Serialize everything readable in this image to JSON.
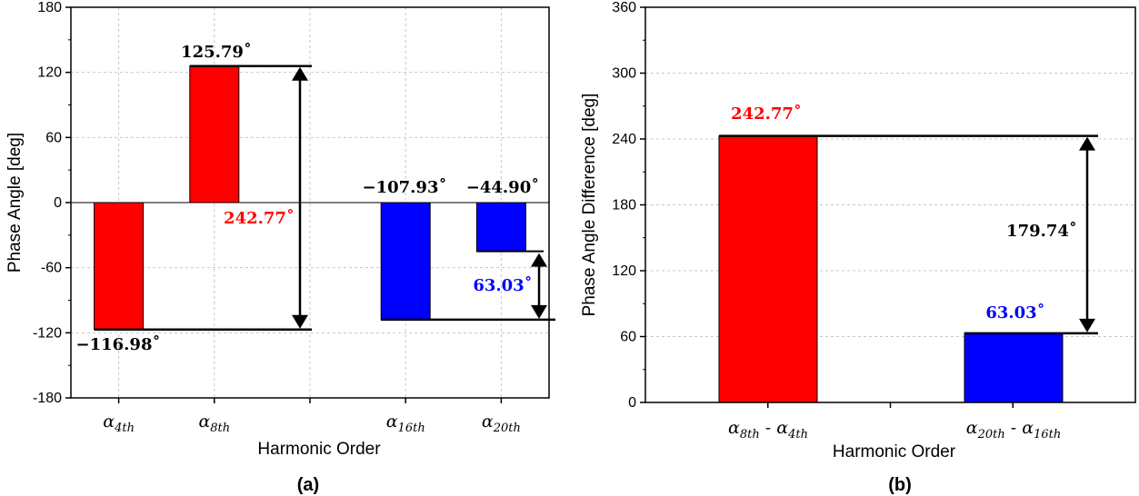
{
  "colors": {
    "red": "#ff0000",
    "blue": "#0000ff",
    "black": "#000000",
    "grid": "#c8c8c8"
  },
  "chart_data": [
    {
      "type": "bar",
      "panel": "(a)",
      "xlabel": "Harmonic Order",
      "ylabel": "Phase Angle [deg]",
      "ylim": [
        -180,
        180
      ],
      "yticks": [
        -180,
        -120,
        -60,
        0,
        60,
        120,
        180
      ],
      "grid": true,
      "categories": [
        {
          "base": "α",
          "sub": "4th"
        },
        {
          "base": "α",
          "sub": "8th"
        },
        {
          "base": "α",
          "sub": "16th"
        },
        {
          "base": "α",
          "sub": "20th"
        }
      ],
      "values": [
        -116.98,
        125.79,
        -107.93,
        -44.9
      ],
      "bar_colors": [
        "red",
        "red",
        "blue",
        "blue"
      ],
      "data_labels": [
        "−116.98˚",
        "125.79˚",
        "−107.93˚",
        "−44.90˚"
      ],
      "annotations": [
        {
          "text": "242.77˚",
          "color": "red",
          "from": -116.98,
          "to": 125.79
        },
        {
          "text": "63.03˚",
          "color": "blue",
          "from": -107.93,
          "to": -44.9
        }
      ]
    },
    {
      "type": "bar",
      "panel": "(b)",
      "xlabel": "Harmonic Order",
      "ylabel": "Phase Angle Difference [deg]",
      "ylim": [
        0,
        360
      ],
      "yticks": [
        0,
        60,
        120,
        180,
        240,
        300,
        360
      ],
      "grid": true,
      "categories": [
        {
          "parts": [
            {
              "base": "α",
              "sub": "8th"
            },
            {
              "base": "α",
              "sub": "4th"
            }
          ],
          "sep": " - "
        },
        {
          "parts": [
            {
              "base": "α",
              "sub": "20th"
            },
            {
              "base": "α",
              "sub": "16th"
            }
          ],
          "sep": " - "
        }
      ],
      "values": [
        242.77,
        63.03
      ],
      "bar_colors": [
        "red",
        "blue"
      ],
      "data_labels": [
        "242.77˚",
        "63.03˚"
      ],
      "annotations": [
        {
          "text": "179.74˚",
          "color": "black",
          "from": 63.03,
          "to": 242.77
        }
      ]
    }
  ]
}
